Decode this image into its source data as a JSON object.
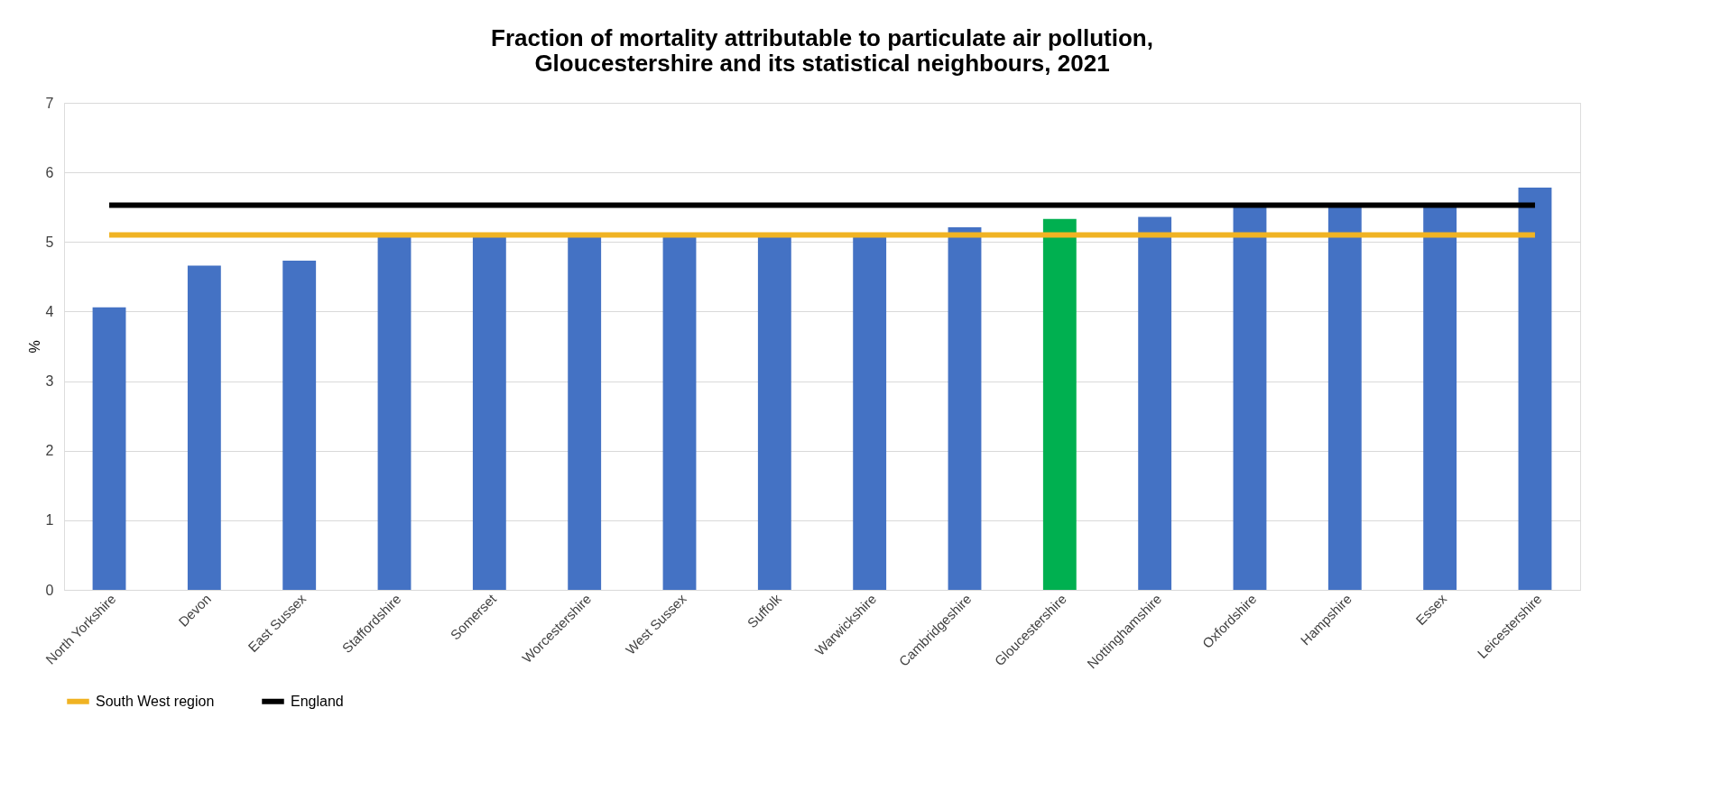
{
  "chart_data": {
    "type": "bar",
    "title": [
      "Fraction of mortality attributable to particulate air pollution,",
      "Gloucestershire and its statistical neighbours, 2021"
    ],
    "ylabel": "%",
    "categories": [
      "North Yorkshire",
      "Devon",
      "East Sussex",
      "Staffordshire",
      "Somerset",
      "Worcestershire",
      "West Sussex",
      "Suffolk",
      "Warwickshire",
      "Cambridgeshire",
      "Gloucestershire",
      "Nottinghamshire",
      "Oxfordshire",
      "Hampshire",
      "Essex",
      "Leicestershire"
    ],
    "series": [
      {
        "colors": [
          "#4472c4",
          "#4472c4",
          "#4472c4",
          "#4472c4",
          "#4472c4",
          "#4472c4",
          "#4472c4",
          "#4472c4",
          "#4472c4",
          "#4472c4",
          "#00b050",
          "#4472c4",
          "#4472c4",
          "#4472c4",
          "#4472c4",
          "#4472c4"
        ],
        "values": [
          4.06,
          4.66,
          4.73,
          5.1,
          5.1,
          5.1,
          5.1,
          5.1,
          5.1,
          5.21,
          5.33,
          5.36,
          5.5,
          5.5,
          5.5,
          5.78
        ]
      },
      {
        "type": "line",
        "name": "South West region",
        "color": "#f0b323",
        "values": [
          5.1,
          5.1,
          5.1,
          5.1,
          5.1,
          5.1,
          5.1,
          5.1,
          5.1,
          5.1,
          5.1,
          5.1,
          5.1,
          5.1,
          5.1,
          5.1
        ]
      },
      {
        "type": "line",
        "name": "England",
        "color": "#000000",
        "values": [
          5.53,
          5.53,
          5.53,
          5.53,
          5.53,
          5.53,
          5.53,
          5.53,
          5.53,
          5.53,
          5.53,
          5.53,
          5.53,
          5.53,
          5.53,
          5.53
        ]
      }
    ],
    "ylim": [
      0,
      7
    ],
    "yticks": [
      0,
      1,
      2,
      3,
      4,
      5,
      6,
      7
    ],
    "grid": "y",
    "legend": "bottom",
    "marker": "none",
    "line_style": "solid"
  }
}
